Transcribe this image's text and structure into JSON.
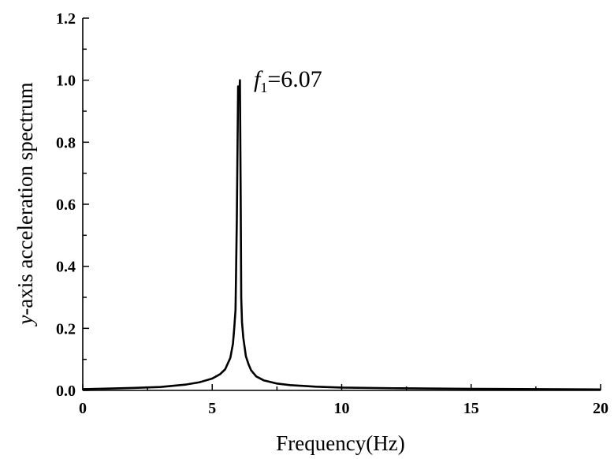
{
  "chart_data": {
    "type": "line",
    "title": "",
    "xlabel": "Frequency(Hz)",
    "ylabel": "y-axis acceleration spectrum",
    "ylabel_parts": {
      "italic": "y",
      "rest": "-axis acceleration spectrum"
    },
    "xlim": [
      0,
      20
    ],
    "ylim": [
      0,
      1.2
    ],
    "x_ticks": [
      0,
      5,
      10,
      15,
      20
    ],
    "y_ticks": [
      0.0,
      0.2,
      0.4,
      0.6,
      0.8,
      1.0,
      1.2
    ],
    "x_tick_labels": [
      "0",
      "5",
      "10",
      "15",
      "20"
    ],
    "y_tick_labels": [
      "0.0",
      "0.2",
      "0.4",
      "0.6",
      "0.8",
      "1.0",
      "1.2"
    ],
    "grid": false,
    "legend": "none",
    "line_color": "#000000",
    "annotation": {
      "italic": "f",
      "subscript": "1",
      "rest": "=6.07"
    },
    "series": [
      {
        "x": [
          0.0,
          1.0,
          2.0,
          3.0,
          4.0,
          4.5,
          5.0,
          5.3,
          5.5,
          5.7,
          5.8,
          5.85,
          5.9,
          5.95,
          6.0,
          6.05,
          6.07,
          6.1,
          6.12,
          6.15,
          6.2,
          6.3,
          6.4,
          6.5,
          6.7,
          7.0,
          7.5,
          8.0,
          9.0,
          10.0,
          12.0,
          15.0,
          20.0
        ],
        "y": [
          0.004,
          0.006,
          0.008,
          0.011,
          0.019,
          0.026,
          0.038,
          0.052,
          0.068,
          0.105,
          0.15,
          0.2,
          0.26,
          0.55,
          0.98,
          0.96,
          1.0,
          0.62,
          0.3,
          0.22,
          0.17,
          0.11,
          0.085,
          0.065,
          0.045,
          0.032,
          0.022,
          0.017,
          0.012,
          0.009,
          0.007,
          0.005,
          0.003
        ]
      }
    ]
  }
}
